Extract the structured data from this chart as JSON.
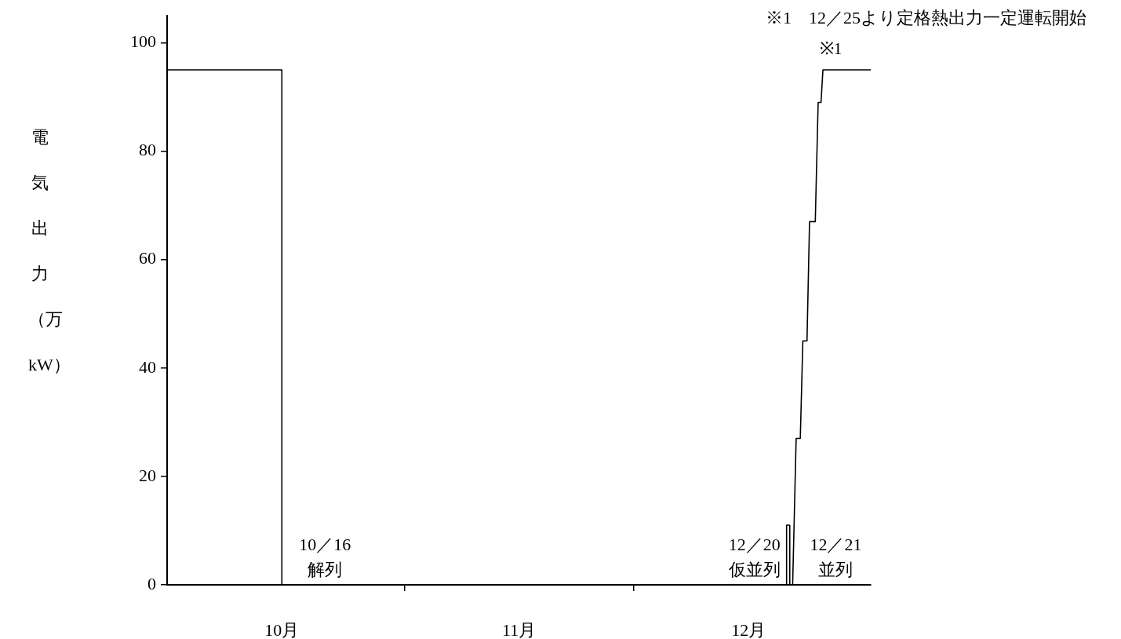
{
  "chart_data": {
    "type": "line",
    "ylabel": "電気出力（万kW）",
    "xlim": [
      "--10-01",
      "--12-31T23:00"
    ],
    "xticks": [
      {
        "value": "--11-01",
        "label": null
      },
      {
        "value": "--12-01",
        "label": null
      },
      {
        "value": "--10-16",
        "label": "10月"
      },
      {
        "value": "--11-16",
        "label": "11月"
      },
      {
        "value": "--12-16",
        "label": "12月"
      }
    ],
    "ylim": [
      0,
      105
    ],
    "yticks": [
      0,
      20,
      40,
      60,
      80,
      100
    ],
    "grid": false,
    "legend": false,
    "marker": "none",
    "line_style": "solid",
    "series": [
      {
        "color": "#000000",
        "x": [
          "--10-01",
          "--10-16",
          "--10-16",
          "--12-20T23:00",
          "--12-20T23:00",
          "--12-21T09:00",
          "--12-21T09:00",
          "--12-21T18:00",
          "--12-22T05:00",
          "--12-22T18:00",
          "--12-23T02:00",
          "--12-23T15:00",
          "--12-23T23:00",
          "--12-24T17:00",
          "--12-25T02:00",
          "--12-25T11:00",
          "--12-25T17:00",
          "--12-31T23:00"
        ],
        "values": [
          95,
          95,
          0,
          0,
          11,
          11,
          0,
          0,
          27,
          27,
          45,
          45,
          67,
          67,
          89,
          89,
          95,
          95
        ]
      }
    ],
    "annotations": [
      {
        "text": "10／16\n解列",
        "x": "--10-16",
        "y": 0
      },
      {
        "text": "12／20\n仮並列",
        "x": "--12-20T23:00",
        "y": 0
      },
      {
        "text": "12／21\n並列",
        "x": "--12-21T18:00",
        "y": 0
      },
      {
        "text": "※1",
        "x": "--12-25T17:00",
        "y": 95
      },
      "※1　12／25より定格熱出力一定運転開始"
    ]
  }
}
